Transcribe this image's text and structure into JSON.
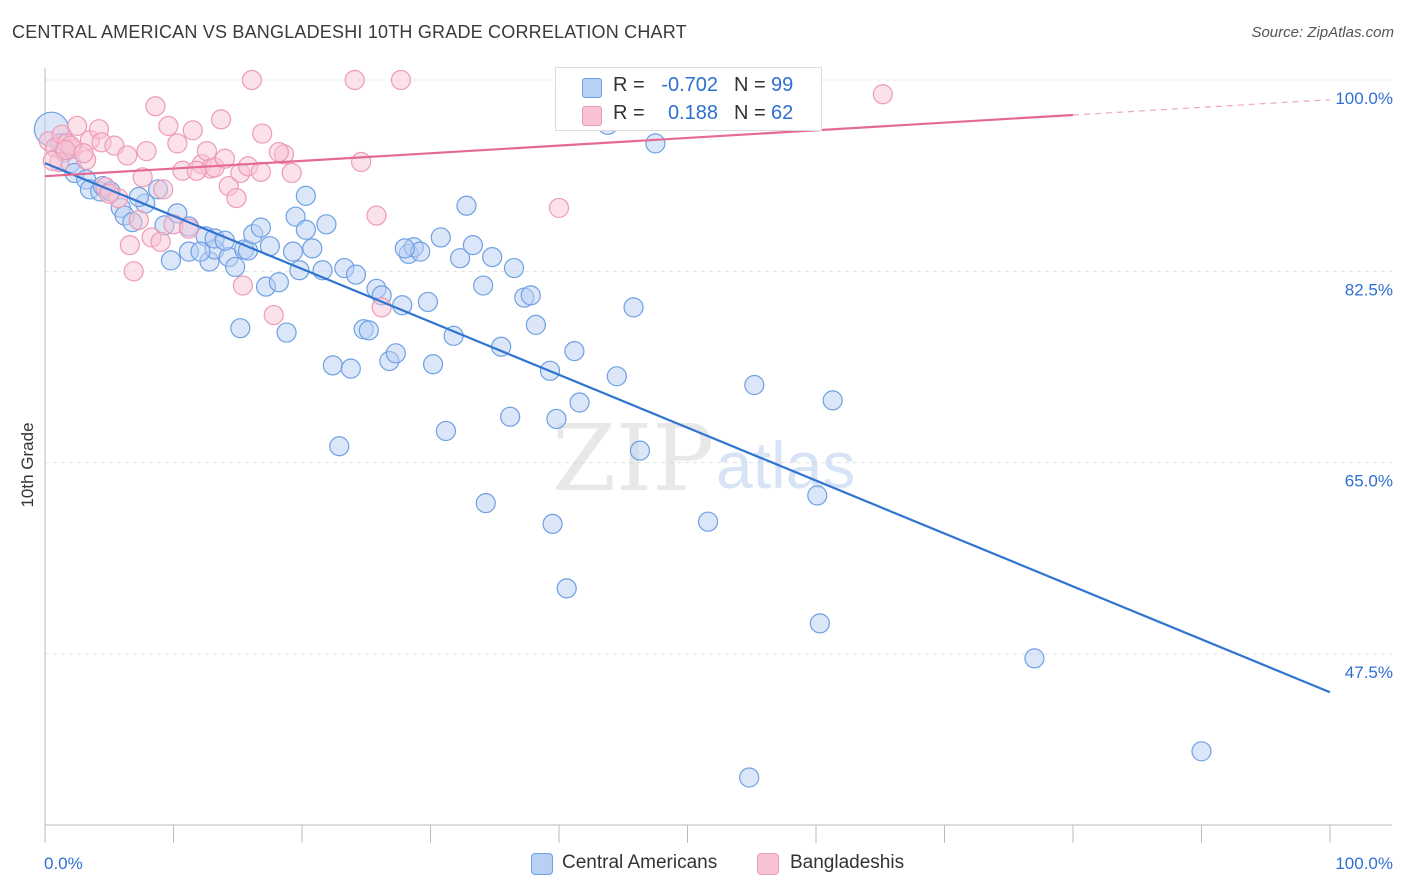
{
  "title": "CENTRAL AMERICAN VS BANGLADESHI 10TH GRADE CORRELATION CHART",
  "source": "Source: ZipAtlas.com",
  "watermark": {
    "zip": "ZIP",
    "atlas": "atlas"
  },
  "legend": {
    "r_label": "R =",
    "n_label": "N =",
    "series": [
      {
        "name": "Central Americans",
        "r": "-0.702",
        "n": "99",
        "color": "#6fa0e3",
        "fill": "#b7d0f3",
        "line": "#2f74d0"
      },
      {
        "name": "Bangladeshis",
        "r": "0.188",
        "n": "62",
        "color": "#ee9bb6",
        "fill": "#f7c3d3",
        "line": "#e46a92"
      }
    ]
  },
  "chart_data": {
    "type": "scatter",
    "title": "CENTRAL AMERICAN VS BANGLADESHI 10TH GRADE CORRELATION CHART",
    "xlabel": "",
    "ylabel": "10th Grade",
    "xlim": [
      0,
      100
    ],
    "ylim": [
      35,
      101
    ],
    "x_tick_labels": [
      "0.0%",
      "100.0%"
    ],
    "y_ticks": [
      {
        "value": 100,
        "label": "100.0%"
      },
      {
        "value": 82.5,
        "label": "82.5%"
      },
      {
        "value": 65,
        "label": "65.0%"
      },
      {
        "value": 47.5,
        "label": "47.5%"
      }
    ],
    "grid": true,
    "legend_position": "top-center",
    "series": [
      {
        "name": "Central Americans",
        "trend": {
          "x0": 0,
          "y0": 92.4,
          "x1": 100,
          "y1": 44.0
        },
        "points": [
          [
            0.5,
            95.5
          ],
          [
            1.2,
            94.2
          ],
          [
            1.5,
            93.4
          ],
          [
            2,
            92.4
          ],
          [
            2.3,
            91.5
          ],
          [
            3.2,
            90.9
          ],
          [
            3.5,
            90.0
          ],
          [
            4.3,
            89.8
          ],
          [
            4.5,
            90.3
          ],
          [
            5.1,
            89.8
          ],
          [
            5.9,
            88.3
          ],
          [
            6.2,
            87.6
          ],
          [
            6.8,
            87.0
          ],
          [
            7.8,
            88.7
          ],
          [
            7.3,
            89.3
          ],
          [
            8.8,
            90.0
          ],
          [
            9.3,
            86.7
          ],
          [
            9.8,
            83.5
          ],
          [
            10.3,
            87.8
          ],
          [
            11.2,
            86.6
          ],
          [
            11.2,
            84.3
          ],
          [
            12.5,
            85.7
          ],
          [
            12.8,
            83.4
          ],
          [
            13.2,
            84.5
          ],
          [
            13.2,
            85.5
          ],
          [
            14.3,
            83.8
          ],
          [
            14.8,
            82.9
          ],
          [
            15.2,
            77.3
          ],
          [
            15.5,
            84.5
          ],
          [
            15.8,
            84.4
          ],
          [
            16.2,
            85.9
          ],
          [
            16.8,
            86.5
          ],
          [
            17.2,
            81.1
          ],
          [
            17.5,
            84.8
          ],
          [
            18.2,
            81.5
          ],
          [
            18.8,
            76.9
          ],
          [
            19.3,
            84.3
          ],
          [
            19.5,
            87.5
          ],
          [
            19.8,
            82.6
          ],
          [
            20.3,
            89.4
          ],
          [
            20.8,
            84.6
          ],
          [
            21.6,
            82.6
          ],
          [
            21.9,
            86.8
          ],
          [
            22.4,
            73.9
          ],
          [
            22.9,
            66.5
          ],
          [
            23.3,
            82.8
          ],
          [
            23.8,
            73.6
          ],
          [
            24.2,
            82.2
          ],
          [
            24.8,
            77.2
          ],
          [
            25.2,
            77.1
          ],
          [
            25.8,
            80.9
          ],
          [
            26.2,
            80.3
          ],
          [
            26.8,
            74.3
          ],
          [
            27.3,
            75.0
          ],
          [
            27.8,
            79.4
          ],
          [
            28.3,
            84.1
          ],
          [
            28.7,
            84.7
          ],
          [
            29.2,
            84.3
          ],
          [
            29.8,
            79.7
          ],
          [
            30.2,
            74.0
          ],
          [
            30.8,
            85.6
          ],
          [
            31.2,
            67.9
          ],
          [
            31.8,
            76.6
          ],
          [
            32.3,
            83.7
          ],
          [
            32.8,
            88.5
          ],
          [
            33.3,
            84.9
          ],
          [
            34.1,
            81.2
          ],
          [
            34.3,
            61.3
          ],
          [
            34.8,
            83.8
          ],
          [
            35.5,
            75.6
          ],
          [
            36.2,
            69.2
          ],
          [
            36.5,
            82.8
          ],
          [
            37.3,
            80.1
          ],
          [
            37.8,
            80.3
          ],
          [
            38.2,
            77.6
          ],
          [
            39.3,
            73.4
          ],
          [
            39.5,
            59.4
          ],
          [
            39.8,
            69.0
          ],
          [
            40.6,
            53.5
          ],
          [
            41.2,
            75.2
          ],
          [
            41.6,
            70.5
          ],
          [
            43.8,
            95.9
          ],
          [
            44.5,
            72.9
          ],
          [
            45.8,
            79.2
          ],
          [
            46.3,
            66.1
          ],
          [
            47.5,
            94.2
          ],
          [
            47.8,
            100.0
          ],
          [
            51.6,
            59.6
          ],
          [
            54.8,
            36.2
          ],
          [
            55.2,
            72.1
          ],
          [
            60.1,
            62.0
          ],
          [
            60.3,
            50.3
          ],
          [
            61.3,
            70.7
          ],
          [
            77.0,
            47.1
          ],
          [
            90.0,
            38.6
          ],
          [
            20.3,
            86.3
          ],
          [
            28.0,
            84.6
          ],
          [
            12.1,
            84.3
          ],
          [
            14.0,
            85.3
          ]
        ]
      },
      {
        "name": "Bangladeshis",
        "trend": {
          "x0": 0,
          "y0": 91.2,
          "x1": 80,
          "y1": 96.8,
          "dashed_to": {
            "x": 100,
            "y": 98.2
          }
        },
        "points": [
          [
            0.3,
            94.4
          ],
          [
            0.8,
            93.8
          ],
          [
            1.1,
            92.5
          ],
          [
            1.3,
            95.0
          ],
          [
            1.7,
            94.2
          ],
          [
            2.1,
            93.7
          ],
          [
            2.5,
            95.8
          ],
          [
            3.2,
            92.7
          ],
          [
            3.5,
            94.5
          ],
          [
            4.2,
            95.5
          ],
          [
            4.4,
            94.3
          ],
          [
            4.7,
            90.2
          ],
          [
            5.4,
            94.0
          ],
          [
            5.7,
            89.2
          ],
          [
            6.4,
            93.1
          ],
          [
            6.6,
            84.9
          ],
          [
            6.9,
            82.5
          ],
          [
            7.3,
            87.2
          ],
          [
            7.6,
            91.1
          ],
          [
            7.9,
            93.5
          ],
          [
            8.3,
            85.6
          ],
          [
            8.6,
            97.6
          ],
          [
            9.2,
            90.0
          ],
          [
            9.6,
            95.8
          ],
          [
            10.0,
            86.8
          ],
          [
            10.3,
            94.2
          ],
          [
            10.7,
            91.7
          ],
          [
            11.2,
            86.4
          ],
          [
            11.5,
            95.4
          ],
          [
            12.2,
            92.3
          ],
          [
            12.6,
            93.5
          ],
          [
            12.9,
            91.9
          ],
          [
            13.2,
            92.0
          ],
          [
            13.7,
            96.4
          ],
          [
            14.0,
            92.8
          ],
          [
            14.3,
            90.3
          ],
          [
            14.9,
            89.2
          ],
          [
            15.2,
            91.5
          ],
          [
            15.4,
            81.2
          ],
          [
            15.8,
            92.1
          ],
          [
            16.1,
            100.0
          ],
          [
            16.8,
            91.6
          ],
          [
            16.9,
            95.1
          ],
          [
            17.8,
            78.5
          ],
          [
            18.6,
            93.2
          ],
          [
            19.2,
            91.5
          ],
          [
            24.1,
            100.0
          ],
          [
            24.6,
            92.5
          ],
          [
            25.8,
            87.6
          ],
          [
            26.2,
            79.2
          ],
          [
            27.7,
            100.0
          ],
          [
            40.0,
            88.3
          ],
          [
            53.5,
            100.0
          ],
          [
            65.2,
            98.7
          ],
          [
            2.0,
            94.0
          ],
          [
            3.0,
            93.3
          ],
          [
            5.0,
            89.6
          ],
          [
            9.0,
            85.2
          ],
          [
            11.8,
            91.7
          ],
          [
            18.2,
            93.4
          ],
          [
            0.6,
            92.6
          ],
          [
            1.6,
            93.6
          ]
        ]
      }
    ]
  }
}
